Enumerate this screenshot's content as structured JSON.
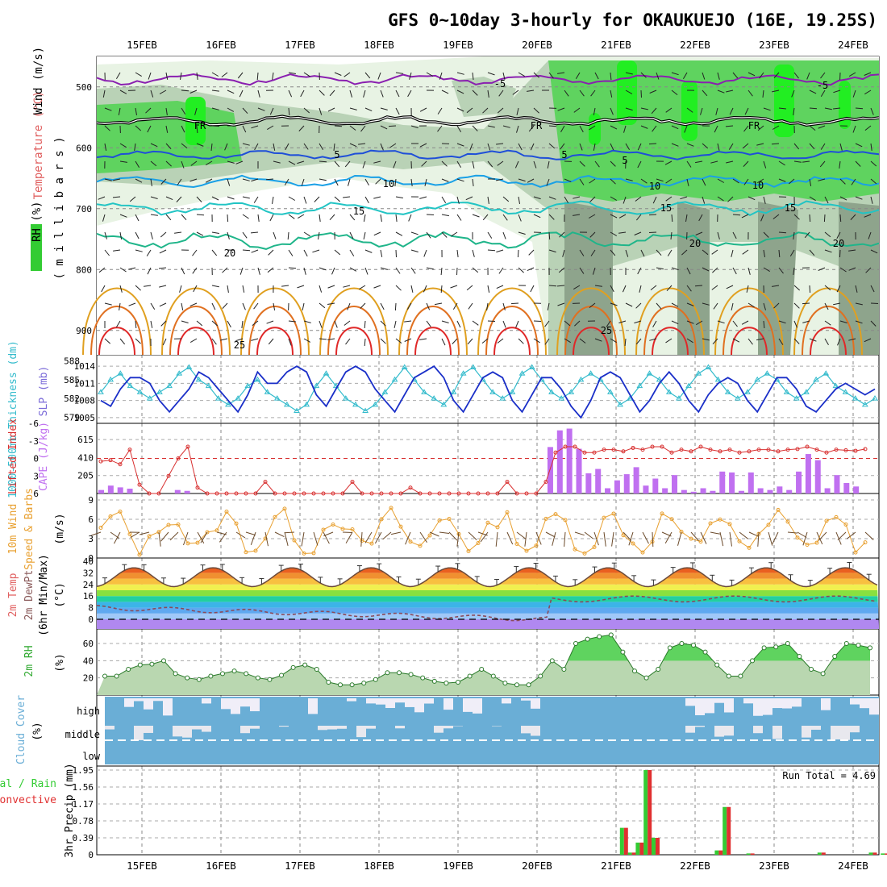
{
  "title": "GFS 0~10day 3-hourly for OKAUKUEJO (16E, 19.25S)",
  "dates": [
    "15FEB",
    "16FEB",
    "17FEB",
    "18FEB",
    "19FEB",
    "20FEB",
    "21FEB",
    "22FEB",
    "23FEB",
    "24FEB"
  ],
  "colors": {
    "rh_light": "#e8f3e4",
    "rh_mid": "#b9d2b6",
    "rh_dark": "#8ea48c",
    "rh_bright": "#5fd35f",
    "rh_neon": "#22ee22",
    "isotherm_m5": "#8a1fb0",
    "isotherm_5": "#1f4fd8",
    "isotherm_10": "#1aa0e6",
    "isotherm_15": "#22c4c4",
    "isotherm_20": "#1fb58a",
    "isotherm_25": "#e0a020",
    "isotherm_30": "#e07020",
    "isotherm_35": "#e02828",
    "slp": "#1a2fc8",
    "thickness": "#33bbcc",
    "cape": "#c070f0",
    "lifted_index": "#d83030",
    "wind_speed": "#e8a030",
    "cloud": "#6aaed6",
    "precip_total": "#33cc33",
    "precip_conv": "#e03030"
  },
  "panels": {
    "profile": {
      "ylabel_rh": "RH (%)",
      "ylabel_temp": "Temperature (°C)",
      "ylabel_wind": "Wind (m/s)",
      "ylabel_pressure": "( m i l l i b a r s )",
      "yticks": [
        "500",
        "600",
        "700",
        "800",
        "900"
      ],
      "contour_labels": [
        "-5",
        "5",
        "10",
        "15",
        "20",
        "25",
        "FR",
        "FR",
        "FR",
        "-5",
        "5",
        "10",
        "15",
        "20",
        "25",
        "5",
        "10",
        "15",
        "20"
      ]
    },
    "slp": {
      "ylabel_thickness": "1000-500mb Thickness (dm)",
      "ylabel_slp": "SLP (mb)",
      "left_ticks": [
        "588",
        "585",
        "582",
        "579"
      ],
      "right_ticks": [
        "1014",
        "1011",
        "1008",
        "1005"
      ]
    },
    "cape": {
      "ylabel_li": "Lifted Index",
      "ylabel_cape": "CAPE (J/kg)",
      "left_ticks": [
        "-6",
        "-3",
        "0",
        "3",
        "6"
      ],
      "right_ticks": [
        "615",
        "410",
        "205"
      ]
    },
    "wind10": {
      "ylabel_a": "10m Wind",
      "ylabel_b": "Speed & Barbs",
      "ylabel_unit": "(m/s)",
      "ticks": [
        "9",
        "6",
        "3",
        "0"
      ]
    },
    "temp2m": {
      "ylabel_a": "2m Temp",
      "ylabel_b": "2m DewPt",
      "ylabel_c": "(6hr Min/Max)",
      "ylabel_unit": "(°C)",
      "ticks": [
        "40",
        "32",
        "24",
        "16",
        "8",
        "0"
      ]
    },
    "rh2m": {
      "ylabel": "2m RH",
      "ylabel_unit": "(%)",
      "ticks": [
        "60",
        "40",
        "20"
      ]
    },
    "cloud": {
      "ylabel": "Cloud Cover",
      "ylabel_unit": "(%)",
      "levels": [
        "high",
        "middle",
        "low"
      ]
    },
    "precip": {
      "ylabel_a": "Total / Rain",
      "ylabel_b": "Convective",
      "ylabel_c": "3hr Precip (mm)",
      "ticks": [
        "1.95",
        "1.56",
        "1.17",
        "0.78",
        "0.39",
        "0"
      ],
      "run_total": "Run Total = 4.69"
    }
  },
  "chart_data": [
    {
      "type": "line",
      "name": "slp",
      "x_unit": "days from start (3-hourly)",
      "values": [
        1008,
        1007,
        1010,
        1012,
        1012,
        1011,
        1008,
        1006,
        1008,
        1010,
        1013,
        1012,
        1010,
        1008,
        1006,
        1009,
        1013,
        1011,
        1011,
        1013,
        1014,
        1013,
        1009,
        1007,
        1010,
        1013,
        1014,
        1013,
        1010,
        1008,
        1006,
        1009,
        1012,
        1013,
        1014,
        1012,
        1008,
        1006,
        1009,
        1012,
        1013,
        1012,
        1008,
        1006,
        1009,
        1012,
        1012,
        1010,
        1007,
        1005,
        1008,
        1012,
        1013,
        1012,
        1009,
        1006,
        1008,
        1011,
        1013,
        1011,
        1008,
        1006,
        1009,
        1011,
        1012,
        1011,
        1008,
        1006,
        1009,
        1012,
        1012,
        1010,
        1007,
        1006,
        1008,
        1010,
        1011,
        1010,
        1009,
        1010
      ],
      "ylim": [
        1004,
        1016
      ]
    },
    {
      "type": "line",
      "name": "thickness",
      "values": [
        583,
        585,
        586,
        584,
        583,
        582,
        583,
        584,
        586,
        587,
        585,
        584,
        582,
        581,
        582,
        584,
        585,
        583,
        582,
        581,
        580,
        581,
        584,
        586,
        584,
        582,
        581,
        580,
        581,
        583,
        585,
        587,
        585,
        583,
        582,
        581,
        583,
        586,
        587,
        585,
        583,
        582,
        583,
        586,
        587,
        585,
        583,
        582,
        583,
        585,
        586,
        585,
        583,
        581,
        582,
        584,
        586,
        585,
        583,
        582,
        584,
        586,
        587,
        585,
        583,
        582,
        583,
        585,
        586,
        585,
        583,
        582,
        583,
        585,
        586,
        584,
        583,
        582,
        581,
        582
      ],
      "ylim": [
        578,
        589
      ]
    },
    {
      "type": "bar",
      "name": "cape",
      "values": [
        40,
        90,
        70,
        55,
        0,
        0,
        0,
        0,
        40,
        30,
        0,
        0,
        0,
        0,
        0,
        0,
        0,
        0,
        0,
        0,
        0,
        0,
        0,
        0,
        0,
        0,
        0,
        0,
        0,
        0,
        0,
        0,
        0,
        0,
        0,
        0,
        0,
        0,
        0,
        0,
        0,
        0,
        0,
        0,
        0,
        0,
        0,
        0,
        0,
        0,
        0,
        0,
        0,
        0,
        0,
        0,
        0,
        0,
        0,
        0,
        0,
        0,
        0,
        0,
        0,
        0,
        0,
        0,
        0,
        0,
        0,
        0,
        0,
        0,
        0,
        0,
        0,
        0,
        0,
        0,
        0,
        0,
        0,
        0,
        0,
        0,
        0,
        0,
        0,
        0,
        0,
        0,
        0,
        0,
        0,
        0,
        0
      ],
      "ylim": [
        0,
        800
      ]
    },
    {
      "type": "bar",
      "name": "precip_total",
      "x": [
        6.6,
        6.7,
        6.8,
        6.9,
        7.0,
        7.1,
        7.8,
        7.9,
        8.2,
        9.1,
        9.75,
        9.9
      ],
      "values": [
        0.62,
        0.05,
        0.28,
        1.95,
        0.39,
        0.0,
        0.1,
        1.1,
        0.03,
        0.05,
        0.05,
        0.03
      ],
      "ylim": [
        0,
        1.95
      ]
    }
  ]
}
